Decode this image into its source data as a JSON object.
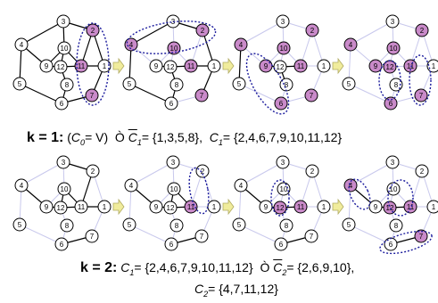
{
  "figure": {
    "row1": {
      "k_label": "k = 1:",
      "open_paren": "(",
      "c0_symbol": "C",
      "c0_sub": "0",
      "c0_rest": "= V)",
      "arrow_glyph": "Ò",
      "cbar1_symbol": "C",
      "cbar1_sub": "1",
      "cbar1_value": "= {1,3,5,8},",
      "c1_symbol": "C",
      "c1_sub": "1",
      "c1_value": "= {2,4,6,7,9,10,11,12}"
    },
    "row2": {
      "k_label": "k = 2:",
      "c1_symbol": "C",
      "c1_sub": "1",
      "c1_value": "= {2,4,6,7,9,10,11,12}",
      "arrow_glyph": "Ò",
      "cbar2_symbol": "C",
      "cbar2_sub": "2",
      "cbar2_value": "= {2,6,9,10},",
      "c2_symbol": "C",
      "c2_sub": "2",
      "c2_value": "= {4,7,11,12}"
    }
  },
  "colors": {
    "highlight_node": "#c98ac9",
    "plain_node": "#ffffff",
    "strong_edge": "#000000",
    "faded_edge": "#c8c8ec",
    "dotted_ellipse": "#1a1a9c",
    "arrow_fill": "#f0ec9c"
  },
  "graph": {
    "nodes": [
      "1",
      "2",
      "3",
      "4",
      "5",
      "6",
      "7",
      "8",
      "9",
      "10",
      "11",
      "12"
    ],
    "edges": [
      [
        "3",
        "4"
      ],
      [
        "3",
        "10"
      ],
      [
        "3",
        "2"
      ],
      [
        "4",
        "9"
      ],
      [
        "4",
        "5"
      ],
      [
        "5",
        "6"
      ],
      [
        "6",
        "8"
      ],
      [
        "6",
        "7"
      ],
      [
        "7",
        "1"
      ],
      [
        "1",
        "2"
      ],
      [
        "1",
        "11"
      ],
      [
        "9",
        "12"
      ],
      [
        "12",
        "8"
      ],
      [
        "12",
        "11"
      ],
      [
        "10",
        "12"
      ],
      [
        "10",
        "11"
      ],
      [
        "2",
        "11"
      ],
      [
        "9",
        "10"
      ]
    ]
  },
  "panels": [
    {
      "highlighted": [
        "2",
        "7",
        "11"
      ],
      "strong_edges": "all",
      "ellipses": 1
    },
    {
      "highlighted": [
        "2",
        "4",
        "7",
        "10",
        "11"
      ],
      "strong_edges": "partial",
      "ellipses": 1
    },
    {
      "highlighted": [
        "2",
        "4",
        "6",
        "7",
        "9",
        "10",
        "11"
      ],
      "strong_edges": "partial",
      "ellipses": 1
    },
    {
      "highlighted": [
        "2",
        "4",
        "6",
        "7",
        "9",
        "10",
        "11",
        "12"
      ],
      "strong_edges": "none",
      "ellipses": 2
    },
    {
      "highlighted": [],
      "strong_edges": "partial",
      "ellipses": 0
    },
    {
      "highlighted": [
        "11"
      ],
      "strong_edges": "partial",
      "ellipses": 1
    },
    {
      "highlighted": [
        "11",
        "12"
      ],
      "strong_edges": "partial",
      "ellipses": 1
    },
    {
      "highlighted": [
        "4",
        "7",
        "11",
        "12"
      ],
      "strong_edges": "partial",
      "ellipses": 3
    }
  ]
}
